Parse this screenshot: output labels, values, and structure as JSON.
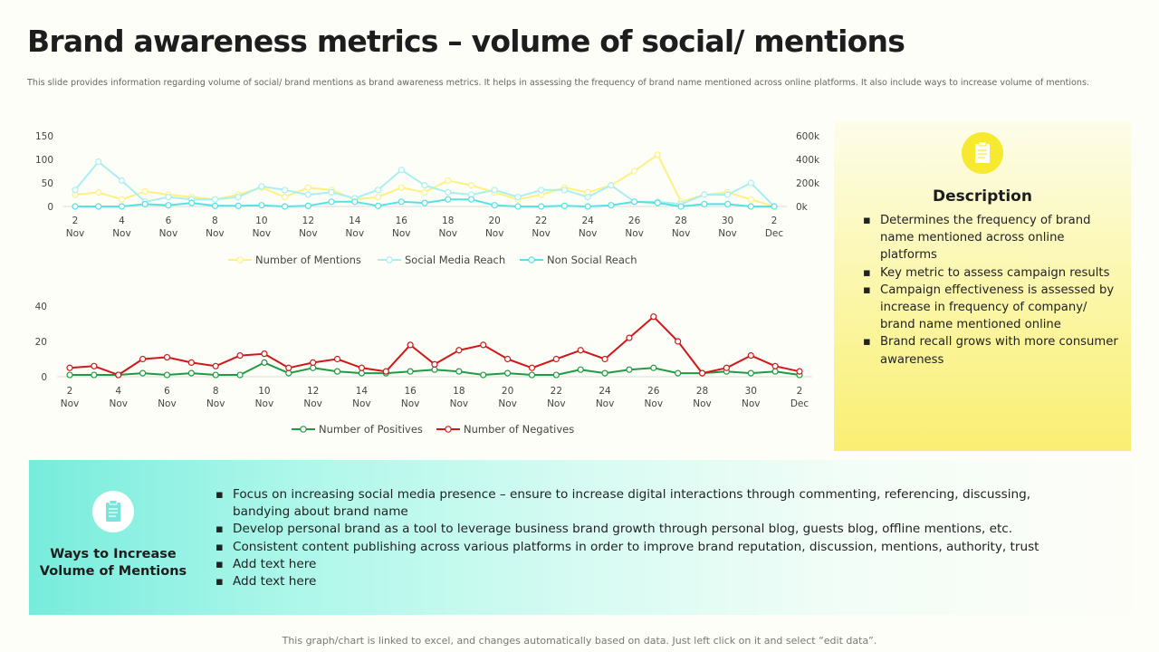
{
  "title": "Brand awareness metrics – volume of social/ mentions",
  "subtitle": "This slide provides information regarding volume of social/ brand mentions as brand awareness metrics. It helps in assessing the frequency of brand name mentioned across online platforms. It also include ways to increase volume of mentions.",
  "colors": {
    "mentions": "#fdf182",
    "social_reach": "#a8f0f0",
    "non_social_reach": "#55e2e2",
    "positives": "#1f9a45",
    "negatives": "#d01818",
    "desc_icon_bg": "#f6e930",
    "ways_icon_bg": "#ffffff"
  },
  "chart_data": [
    {
      "type": "line",
      "title": "",
      "categories": [
        "2 Nov",
        "3 Nov",
        "4 Nov",
        "5 Nov",
        "6 Nov",
        "7 Nov",
        "8 Nov",
        "9 Nov",
        "10 Nov",
        "11 Nov",
        "12 Nov",
        "13 Nov",
        "14 Nov",
        "15 Nov",
        "16 Nov",
        "17 Nov",
        "18 Nov",
        "19 Nov",
        "20 Nov",
        "21 Nov",
        "22 Nov",
        "23 Nov",
        "24 Nov",
        "25 Nov",
        "26 Nov",
        "27 Nov",
        "28 Nov",
        "29 Nov",
        "30 Nov",
        "1 Dec",
        "2 Dec"
      ],
      "tick_labels": [
        {
          "day": "2",
          "month": "Nov"
        },
        {
          "day": "4",
          "month": "Nov"
        },
        {
          "day": "6",
          "month": "Nov"
        },
        {
          "day": "8",
          "month": "Nov"
        },
        {
          "day": "10",
          "month": "Nov"
        },
        {
          "day": "12",
          "month": "Nov"
        },
        {
          "day": "14",
          "month": "Nov"
        },
        {
          "day": "16",
          "month": "Nov"
        },
        {
          "day": "18",
          "month": "Nov"
        },
        {
          "day": "20",
          "month": "Nov"
        },
        {
          "day": "22",
          "month": "Nov"
        },
        {
          "day": "24",
          "month": "Nov"
        },
        {
          "day": "26",
          "month": "Nov"
        },
        {
          "day": "28",
          "month": "Nov"
        },
        {
          "day": "30",
          "month": "Nov"
        },
        {
          "day": "2",
          "month": "Dec"
        }
      ],
      "y_ticks_left": [
        "0",
        "50",
        "100",
        "150"
      ],
      "y_ticks_right": [
        "0k",
        "200k",
        "400k",
        "600k"
      ],
      "ylim": [
        0,
        150
      ],
      "ylim_right": [
        0,
        600000
      ],
      "series": [
        {
          "name": "Number of Mentions",
          "axis": "left",
          "color_key": "mentions",
          "values": [
            25,
            30,
            15,
            32,
            25,
            20,
            15,
            25,
            40,
            20,
            40,
            35,
            15,
            20,
            40,
            30,
            55,
            45,
            30,
            15,
            25,
            40,
            30,
            45,
            75,
            110,
            10,
            25,
            30,
            15,
            0
          ]
        },
        {
          "name": "Social Media Reach",
          "axis": "right",
          "color_key": "social_reach",
          "values": [
            140000,
            380000,
            220000,
            40000,
            80000,
            60000,
            60000,
            80000,
            170000,
            140000,
            100000,
            120000,
            70000,
            140000,
            310000,
            180000,
            120000,
            100000,
            140000,
            80000,
            140000,
            140000,
            80000,
            180000,
            40000,
            40000,
            20000,
            100000,
            100000,
            200000,
            0
          ]
        },
        {
          "name": "Non Social Reach",
          "axis": "right",
          "color_key": "non_social_reach",
          "values": [
            0,
            0,
            0,
            20000,
            10000,
            30000,
            5000,
            5000,
            10000,
            0,
            5000,
            40000,
            40000,
            5000,
            40000,
            30000,
            60000,
            60000,
            10000,
            0,
            0,
            5000,
            0,
            10000,
            40000,
            30000,
            0,
            20000,
            20000,
            0,
            0
          ]
        }
      ],
      "legend": "bottom"
    },
    {
      "type": "line",
      "title": "",
      "categories": [
        "2 Nov",
        "3 Nov",
        "4 Nov",
        "5 Nov",
        "6 Nov",
        "7 Nov",
        "8 Nov",
        "9 Nov",
        "10 Nov",
        "11 Nov",
        "12 Nov",
        "13 Nov",
        "14 Nov",
        "15 Nov",
        "16 Nov",
        "17 Nov",
        "18 Nov",
        "19 Nov",
        "20 Nov",
        "21 Nov",
        "22 Nov",
        "23 Nov",
        "24 Nov",
        "25 Nov",
        "26 Nov",
        "27 Nov",
        "28 Nov",
        "29 Nov",
        "30 Nov",
        "1 Dec",
        "2 Dec"
      ],
      "tick_labels": [
        {
          "day": "2",
          "month": "Nov"
        },
        {
          "day": "4",
          "month": "Nov"
        },
        {
          "day": "6",
          "month": "Nov"
        },
        {
          "day": "8",
          "month": "Nov"
        },
        {
          "day": "10",
          "month": "Nov"
        },
        {
          "day": "12",
          "month": "Nov"
        },
        {
          "day": "14",
          "month": "Nov"
        },
        {
          "day": "16",
          "month": "Nov"
        },
        {
          "day": "18",
          "month": "Nov"
        },
        {
          "day": "20",
          "month": "Nov"
        },
        {
          "day": "22",
          "month": "Nov"
        },
        {
          "day": "24",
          "month": "Nov"
        },
        {
          "day": "26",
          "month": "Nov"
        },
        {
          "day": "28",
          "month": "Nov"
        },
        {
          "day": "30",
          "month": "Nov"
        },
        {
          "day": "2",
          "month": "Dec"
        }
      ],
      "y_ticks_left": [
        "0",
        "20",
        "40"
      ],
      "ylim": [
        0,
        40
      ],
      "series": [
        {
          "name": "Number of Positives",
          "axis": "left",
          "color_key": "positives",
          "values": [
            1,
            1,
            1,
            2,
            1,
            2,
            1,
            1,
            8,
            2,
            5,
            3,
            2,
            2,
            3,
            4,
            3,
            1,
            2,
            1,
            1,
            4,
            2,
            4,
            5,
            2,
            2,
            3,
            2,
            3,
            1
          ]
        },
        {
          "name": "Number of Negatives",
          "axis": "left",
          "color_key": "negatives",
          "values": [
            5,
            6,
            1,
            10,
            11,
            8,
            6,
            12,
            13,
            5,
            8,
            10,
            5,
            3,
            18,
            7,
            15,
            18,
            10,
            5,
            10,
            15,
            10,
            22,
            34,
            20,
            2,
            5,
            12,
            6,
            3
          ]
        }
      ],
      "legend": "bottom"
    }
  ],
  "description": {
    "icon": "clipboard-icon",
    "heading": "Description",
    "items": [
      "Determines the frequency of brand name mentioned across online platforms",
      "Key metric to assess campaign results",
      "Campaign effectiveness is assessed by increase in frequency of company/ brand name mentioned online",
      "Brand recall grows with more consumer awareness"
    ]
  },
  "ways": {
    "icon": "clipboard-icon",
    "heading": "Ways to Increase Volume of Mentions",
    "items": [
      "Focus on increasing social media presence – ensure to increase digital interactions through commenting, referencing, discussing, bandying about brand name",
      "Develop personal brand as a tool to leverage business brand growth through personal blog, guests blog, offline mentions, etc.",
      "Consistent content publishing across various platforms in order to improve brand reputation, discussion, mentions, authority, trust",
      "Add text here",
      "Add text here"
    ]
  },
  "footer_note": "This graph/chart is linked to excel, and changes automatically based on data. Just left click on it and select “edit data”."
}
